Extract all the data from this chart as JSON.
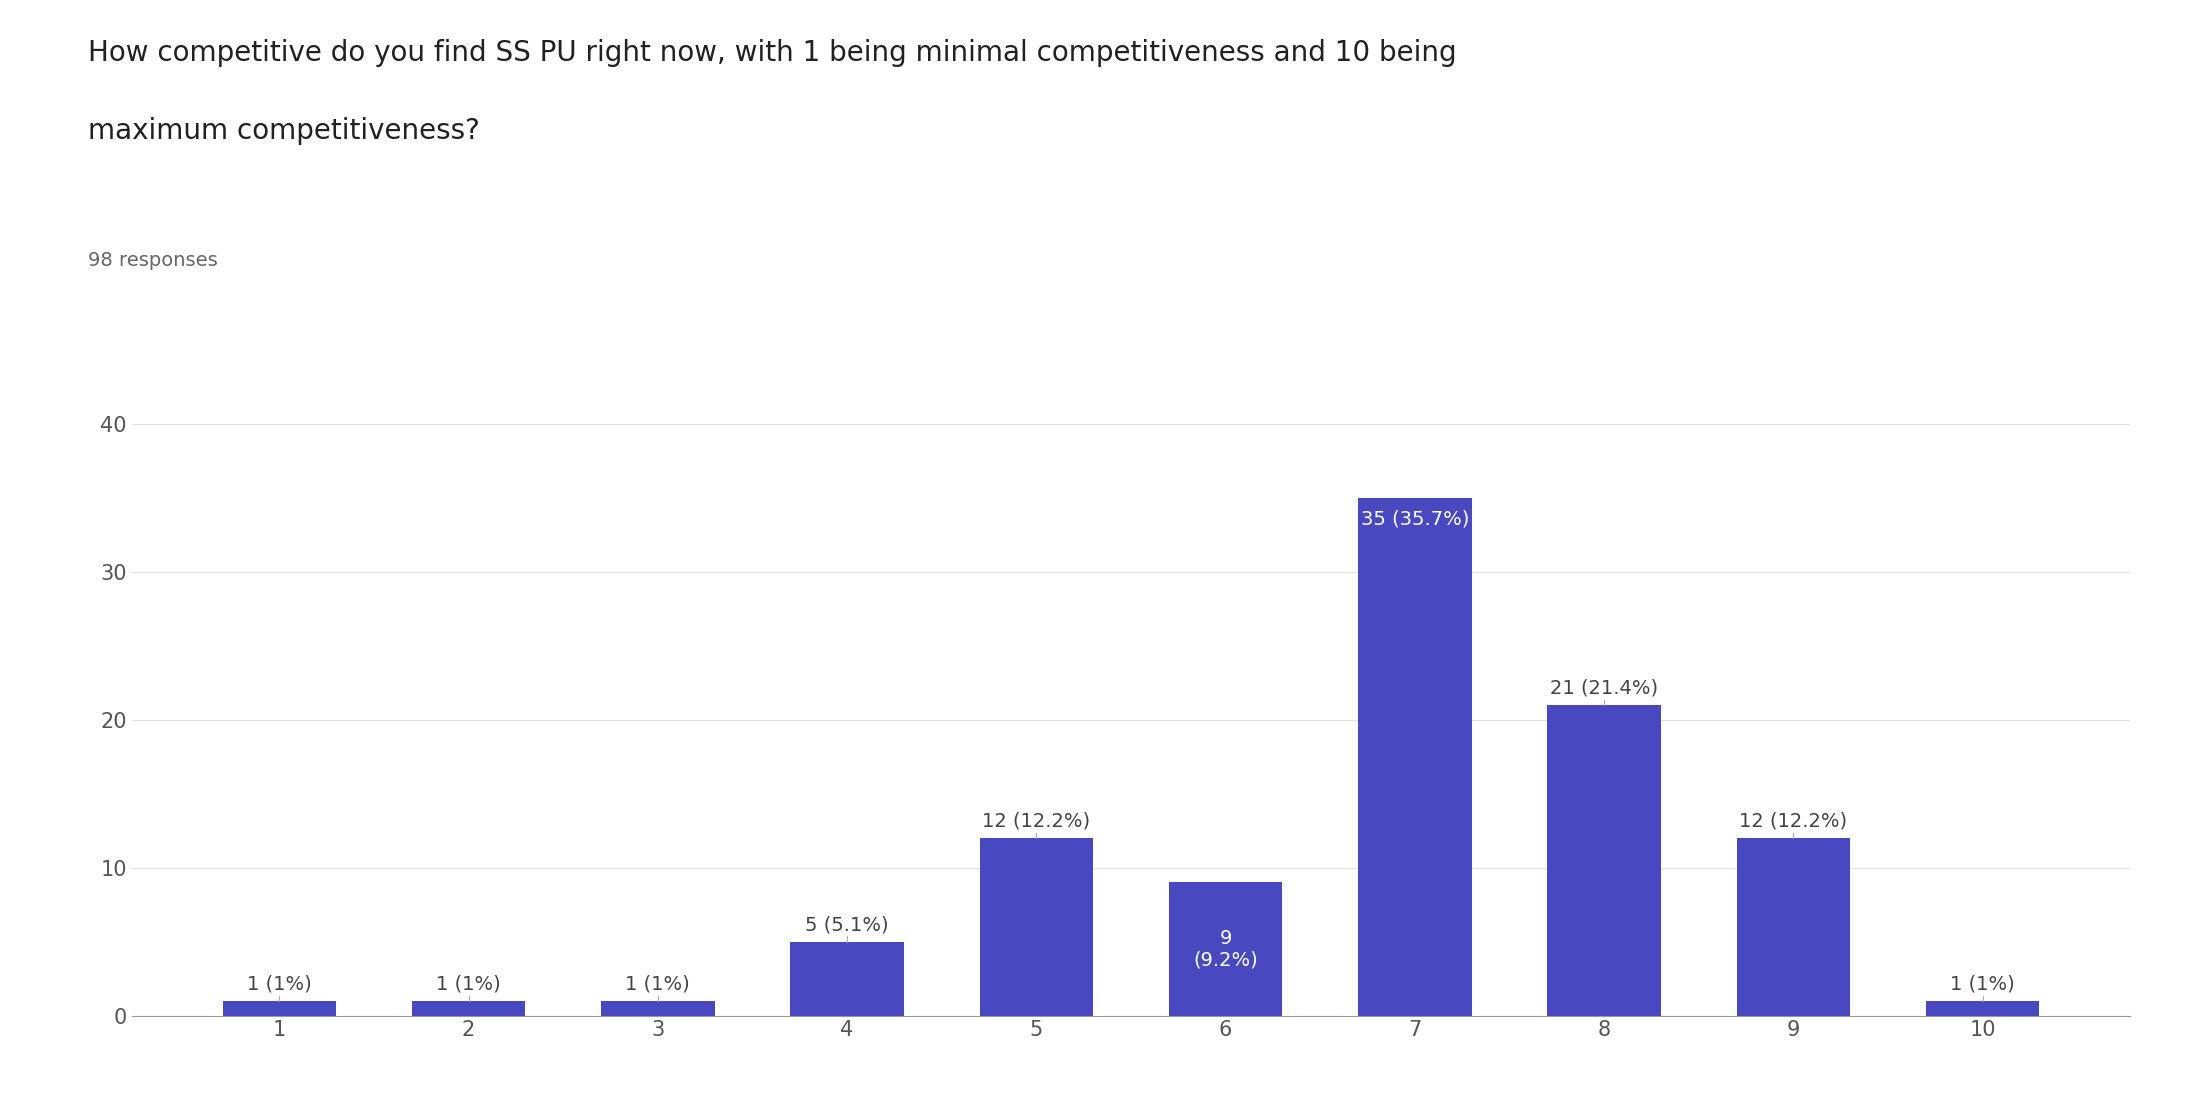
{
  "title_line1": "How competitive do you find SS PU right now, with 1 being minimal competitiveness and 10 being",
  "title_line2": "maximum competitiveness?",
  "subtitle": "98 responses",
  "categories": [
    1,
    2,
    3,
    4,
    5,
    6,
    7,
    8,
    9,
    10
  ],
  "values": [
    1,
    1,
    1,
    5,
    12,
    9,
    35,
    21,
    12,
    1
  ],
  "labels": [
    "1 (1%)",
    "1 (1%)",
    "1 (1%)",
    "5 (5.1%)",
    "12 (12.2%)",
    "9\n(9.2%)",
    "35 (35.7%)",
    "21 (21.4%)",
    "12 (12.2%)",
    "1 (1%)"
  ],
  "bar_color": "#4848c0",
  "label_inside": [
    false,
    false,
    false,
    false,
    false,
    true,
    true,
    false,
    false,
    false
  ],
  "label_inside_valign": [
    "center",
    "center",
    "center",
    "center",
    "center",
    "center",
    "top",
    "center",
    "center",
    "center"
  ],
  "ylim": [
    0,
    40
  ],
  "yticks": [
    0,
    10,
    20,
    30,
    40
  ],
  "background_color": "#ffffff",
  "grid_color": "#e0e0e0",
  "title_fontsize": 20,
  "subtitle_fontsize": 14,
  "tick_fontsize": 15,
  "label_fontsize": 14
}
